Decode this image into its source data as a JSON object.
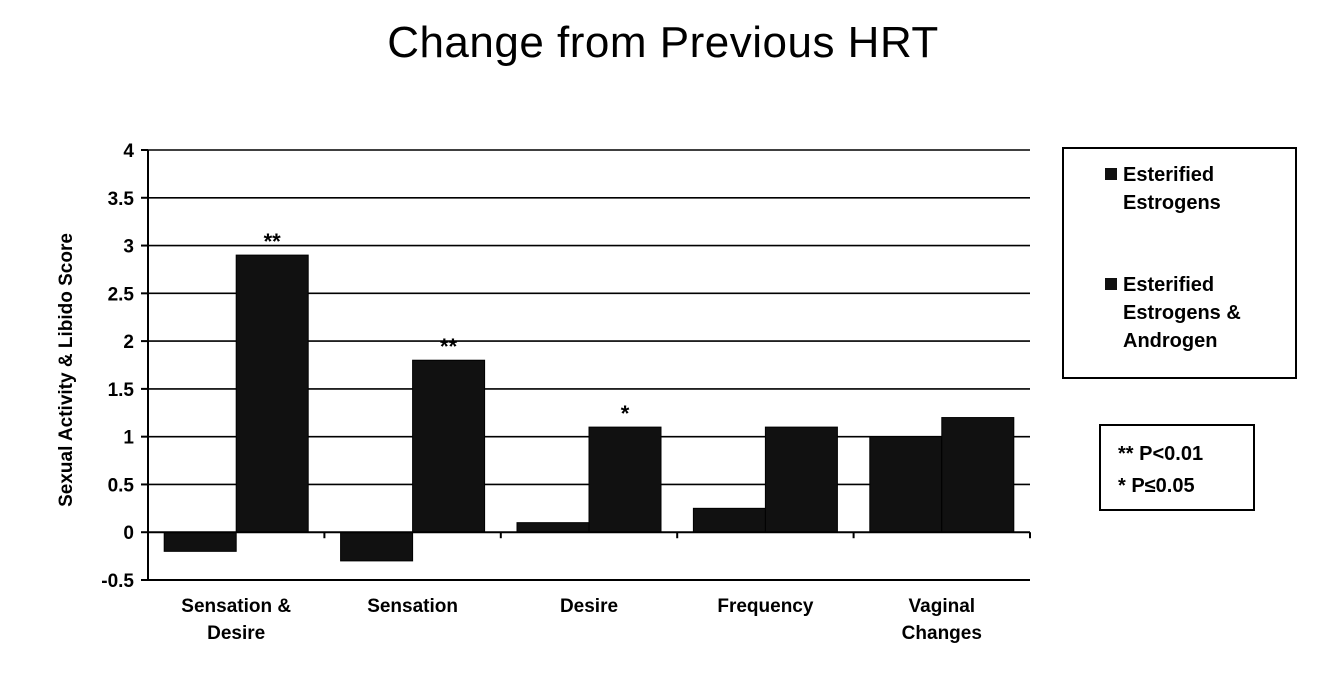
{
  "chart_data": {
    "type": "bar",
    "title": "Change from Previous HRT",
    "ylabel": "Sexual Activity & Libido Score",
    "xlabel": "",
    "ylim": [
      -0.5,
      4
    ],
    "yticks": [
      -0.5,
      0,
      0.5,
      1,
      1.5,
      2,
      2.5,
      3,
      3.5,
      4
    ],
    "ytick_labels": [
      "-0.5",
      "0",
      "0.5",
      "1",
      "1.5",
      "2",
      "2.5",
      "3",
      "3.5",
      "4"
    ],
    "grid": true,
    "legend_position": "right",
    "categories": [
      [
        "Sensation &",
        "Desire"
      ],
      [
        "Sensation"
      ],
      [
        "Desire"
      ],
      [
        "Frequency"
      ],
      [
        "Vaginal",
        "Changes"
      ]
    ],
    "series": [
      {
        "name": [
          "Esterified",
          "Estrogens"
        ],
        "values": [
          -0.2,
          -0.3,
          0.1,
          0.25,
          1.0
        ],
        "color": "#111111"
      },
      {
        "name": [
          "Esterified",
          "Estrogens &",
          "Androgen"
        ],
        "values": [
          2.9,
          1.8,
          1.1,
          1.1,
          1.2
        ],
        "color": "#111111"
      }
    ],
    "annotations": [
      "**",
      "**",
      "*",
      "",
      ""
    ],
    "significance_legend": [
      "** P<0.01",
      "* P≤0.05"
    ]
  }
}
